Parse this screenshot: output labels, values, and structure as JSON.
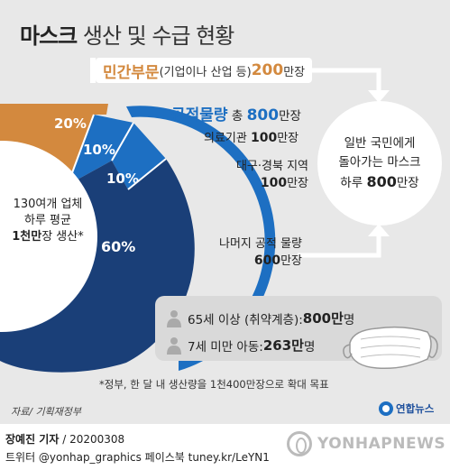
{
  "title": {
    "bold": "마스크",
    "rest": " 생산 및 수급 현황"
  },
  "chart_data": {
    "type": "pie",
    "slices": [
      {
        "label": "민간부문",
        "percent": 20,
        "color": "#d3893e"
      },
      {
        "label": "의료기관",
        "percent": 10,
        "color": "#1d6fc2"
      },
      {
        "label": "대구·경북 지역",
        "percent": 10,
        "color": "#1d6fc2"
      },
      {
        "label": "나머지 공적 물량",
        "percent": 60,
        "color": "#1a3f78"
      }
    ]
  },
  "labels": {
    "pct_private": "20%",
    "pct_medical": "10%",
    "pct_daegu": "10%",
    "pct_rest": "60%"
  },
  "production": {
    "line1": "130여개 업체",
    "line2": "하루 평균",
    "line3_bold": "1천만",
    "line3_rest": "장 생산*"
  },
  "private": {
    "name": "민간부문",
    "detail": " (기업이나 산업 등) ",
    "amount": "200",
    "unit": "만장"
  },
  "public": {
    "name": "공적물량",
    "mid": " 총 ",
    "amount": "800",
    "unit": "만장"
  },
  "medical": {
    "name": "의료기관 ",
    "amount": "100",
    "unit": "만장"
  },
  "daegu": {
    "name": "대구·경북 지역",
    "amount": "100",
    "unit": "만장"
  },
  "rest": {
    "name": "나머지 공적 물량",
    "amount": "600",
    "unit": "만장"
  },
  "citizens": {
    "line1": "일반 국민에게",
    "line2": "돌아가는 마스크",
    "line3_pre": "하루 ",
    "line3_amount": "800",
    "line3_unit": "만장"
  },
  "vulnerable": [
    {
      "text": "65세 이상 (취약계층): ",
      "amount": "800만",
      "unit": "명"
    },
    {
      "text": "7세 미만 아동: ",
      "amount": "263만",
      "unit": "명"
    }
  ],
  "footnote": "*정부, 한 달 내 생산량을 1천400만장으로 확대 목표",
  "source": "자료/ 기획재정부",
  "logo": "연합뉴스",
  "credit": {
    "author": "장예진 기자",
    "date": " / 20200308"
  },
  "social": "트위터 @yonhap_graphics  페이스북 tuney.kr/LeYN1",
  "watermark": "YONHAPNEWS"
}
